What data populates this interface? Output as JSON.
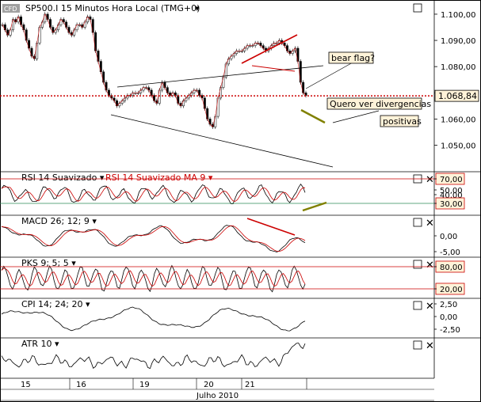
{
  "chart_data": {
    "type": "line",
    "main": {
      "symbol_label": "SP500.I 15 Minutos Hora Local (TMG+0)",
      "badge": "CFD",
      "price_ticks": [
        "1.100,00",
        "1.090,00",
        "1.080,00",
        "1.070,00",
        "1.060,00",
        "1.050,00"
      ],
      "price_tick_values": [
        1100,
        1090,
        1080,
        1070,
        1060,
        1050
      ],
      "ylim": [
        1042,
        1103
      ],
      "last_price_label": "1.068,84",
      "last_price": 1068.84,
      "annotations": [
        "bear flag?",
        "Quero ver divergencias",
        "positivas"
      ],
      "close": [
        1096,
        1094,
        1092,
        1094,
        1098,
        1097,
        1099,
        1096,
        1094,
        1090,
        1087,
        1084,
        1083,
        1089,
        1095,
        1097,
        1100,
        1098,
        1095,
        1093,
        1094,
        1096,
        1098,
        1097,
        1095,
        1093,
        1092,
        1094,
        1096,
        1096,
        1095,
        1097,
        1099,
        1098,
        1093,
        1086,
        1082,
        1078,
        1074,
        1071,
        1069,
        1068,
        1067,
        1065,
        1066,
        1067,
        1068,
        1069,
        1069,
        1070,
        1070,
        1070,
        1071,
        1072,
        1072,
        1071,
        1069,
        1067,
        1066,
        1071,
        1074,
        1072,
        1070,
        1069,
        1070,
        1069,
        1066,
        1065,
        1067,
        1068,
        1069,
        1070,
        1071,
        1071,
        1069,
        1068,
        1064,
        1060,
        1058,
        1057,
        1061,
        1068,
        1072,
        1076,
        1081,
        1083,
        1084,
        1085,
        1086,
        1086,
        1086,
        1087,
        1088,
        1088,
        1088,
        1089,
        1089,
        1088,
        1087,
        1086,
        1087,
        1088,
        1089,
        1089,
        1090,
        1089,
        1088,
        1086,
        1085,
        1086,
        1087,
        1082,
        1074,
        1070,
        1069
      ]
    },
    "x_axis": {
      "day_ticks": [
        "15",
        "16",
        "19",
        "20",
        "21"
      ],
      "month_label": "Julho 2010"
    },
    "panels": [
      {
        "label": "RSI 14 Suavizado",
        "label2": "RSI 14 Suavizado MA 9",
        "ticks": [
          "70,00",
          "50,00",
          "40,00",
          "30,00"
        ],
        "levels": [
          "70,00",
          "30,00"
        ]
      },
      {
        "label": "MACD 26; 12; 9",
        "ticks": [
          "0,00",
          "-5,00"
        ]
      },
      {
        "label": "PKS 9; 5; 5",
        "ticks": [
          "80,00",
          "20,00"
        ],
        "levels": [
          "80,00",
          "20,00"
        ]
      },
      {
        "label": "CPI 14; 24; 20",
        "ticks": [
          "2,50",
          "0,00",
          "-2,50"
        ]
      },
      {
        "label": "ATR 10",
        "ticks": []
      }
    ],
    "colors": {
      "price_up": "#2e8b57",
      "price_down": "#cc0000",
      "signal": "#cc0000",
      "level_red": "#cc0000",
      "level_green": "#2e8b57",
      "divergence": "#808000",
      "last_price_line": "#cc0000",
      "note_bg": "#fff3d9"
    }
  }
}
